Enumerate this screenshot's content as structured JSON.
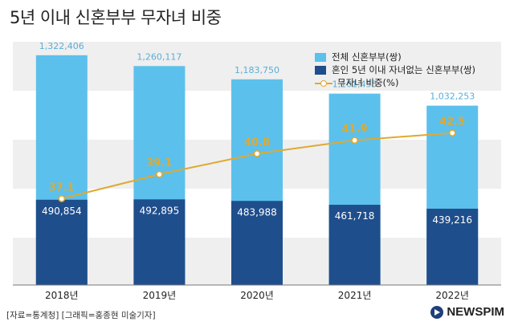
{
  "title": "5년 이내 신혼부부 무자녀 비중",
  "footer": "[자료=통계청] [그래픽=홍종현 미술기자]",
  "brand": "NEWSPIM",
  "colors": {
    "total": "#5cc0ec",
    "childless": "#1f4e8c",
    "ratio": "#e0a92e",
    "band": "#efefef"
  },
  "chart_data": {
    "type": "bar",
    "categories": [
      "2018년",
      "2019년",
      "2020년",
      "2021년",
      "2022년"
    ],
    "series": [
      {
        "name": "전체 신혼부부(쌍)",
        "values": [
          1322406,
          1260117,
          1183750,
          1101455,
          1032253
        ],
        "labels": [
          "1,322,406",
          "1,260,117",
          "1,183,750",
          "1,101,455",
          "1,032,253"
        ]
      },
      {
        "name": "혼인 5년 이내 자녀없는 신혼부부(쌍)",
        "values": [
          490854,
          492895,
          483988,
          461718,
          439216
        ],
        "labels": [
          "490,854",
          "492,895",
          "483,988",
          "461,718",
          "439,216"
        ]
      },
      {
        "name": "무자녀 비중(%)",
        "type": "line",
        "values": [
          37.1,
          39.1,
          40.8,
          41.9,
          42.5
        ],
        "labels": [
          "37.1",
          "39.1",
          "40.8",
          "41.9",
          "42.5"
        ]
      }
    ],
    "ylim": [
      0,
      1400000
    ],
    "ratio_range": [
      30,
      50
    ],
    "legend": "top-right"
  }
}
